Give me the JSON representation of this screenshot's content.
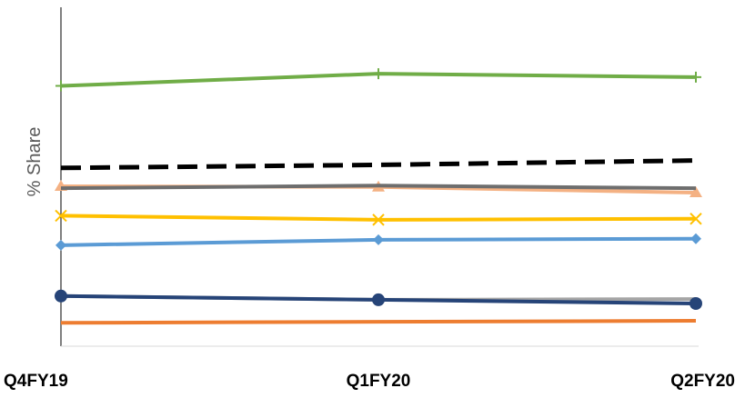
{
  "chart_data": {
    "type": "line",
    "title": "",
    "xlabel": "",
    "ylabel": "% Share",
    "categories": [
      "Q4FY19",
      "Q1FY20",
      "Q2FY20"
    ],
    "ylim": [
      0,
      100
    ],
    "grid": false,
    "legend": "none",
    "series": [
      {
        "color": "#70AD47",
        "marker": "plus",
        "dash": false,
        "values": [
          76.8,
          80.4,
          79.4
        ]
      },
      {
        "color": "#000000",
        "marker": "none",
        "dash": true,
        "values": [
          52.6,
          53.5,
          54.8
        ]
      },
      {
        "color": "#F4B183",
        "marker": "triangle",
        "dash": false,
        "values": [
          47.2,
          47.0,
          45.3
        ]
      },
      {
        "color": "#6E6E6E",
        "marker": "none",
        "dash": false,
        "values": [
          46.6,
          47.4,
          46.6
        ]
      },
      {
        "color": "#FFC000",
        "marker": "x",
        "dash": false,
        "values": [
          38.5,
          37.3,
          37.6
        ]
      },
      {
        "color": "#5B9BD5",
        "marker": "diamond",
        "dash": false,
        "values": [
          29.8,
          31.4,
          31.7
        ]
      },
      {
        "color": "#A5A5A5",
        "marker": "none",
        "dash": false,
        "values": [
          14.8,
          13.7,
          13.9
        ]
      },
      {
        "color": "#264478",
        "marker": "circle",
        "dash": false,
        "values": [
          14.8,
          13.7,
          12.6
        ]
      },
      {
        "color": "#ED7D31",
        "marker": "none",
        "dash": false,
        "values": [
          6.9,
          7.2,
          7.5
        ]
      }
    ]
  }
}
